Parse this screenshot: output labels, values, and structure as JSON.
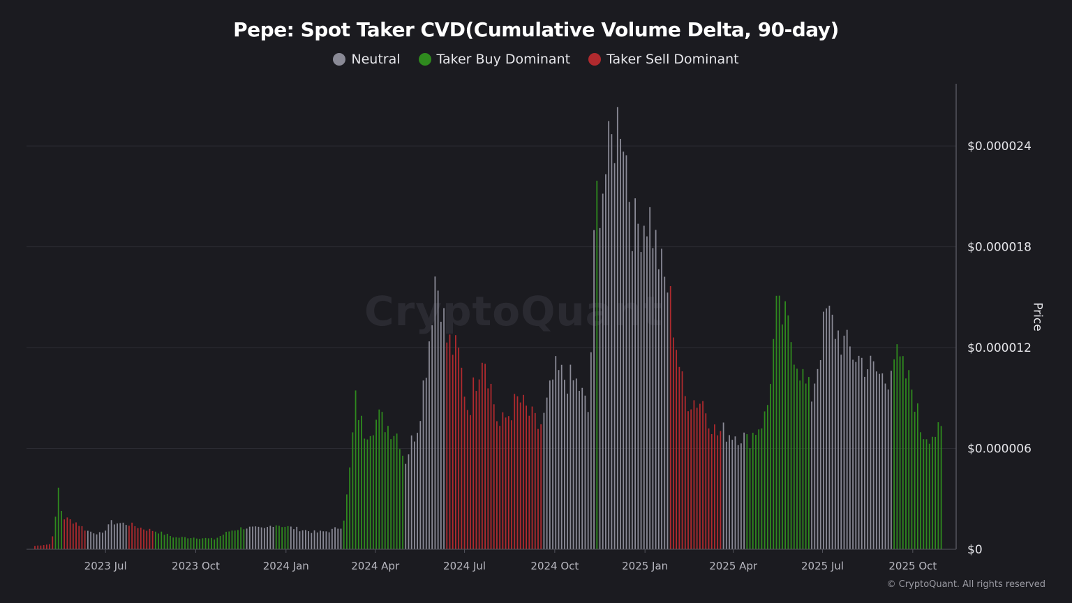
{
  "chart_data": {
    "type": "bar",
    "title": "Pepe: Spot Taker CVD(Cumulative Volume Delta, 90-day)",
    "ylabel": "Price",
    "ylim": [
      0,
      2.77e-05
    ],
    "yticks": [
      "$0",
      "$0.000006",
      "$0.000012",
      "$0.000018",
      "$0.000024"
    ],
    "ytick_values": [
      0,
      6e-06,
      1.2e-05,
      1.8e-05,
      2.4e-05
    ],
    "xticks": [
      "2023 Jul",
      "2023 Oct",
      "2024 Jan",
      "2024 Apr",
      "2024 Jul",
      "2024 Oct",
      "2025 Jan",
      "2025 Apr",
      "2025 Jul",
      "2025 Oct"
    ],
    "xtick_dates": [
      "2023-07-01",
      "2023-10-01",
      "2024-01-01",
      "2024-04-01",
      "2024-07-01",
      "2024-10-01",
      "2025-01-01",
      "2025-04-01",
      "2025-07-01",
      "2025-10-01"
    ],
    "x_range": [
      "2023-04-20",
      "2025-10-31"
    ],
    "legend_position": "top-center",
    "grid": true,
    "categories_legend": [
      {
        "name": "Neutral",
        "color": "#8a8a96"
      },
      {
        "name": "Taker Buy Dominant",
        "color": "#2f8a1e"
      },
      {
        "name": "Taker Sell Dominant",
        "color": "#b02a2e"
      }
    ],
    "series_points": [
      [
        "2023-04-20",
        2e-07,
        "sell"
      ],
      [
        "2023-05-05",
        3e-07,
        "sell"
      ],
      [
        "2023-05-10",
        1.2e-06,
        "buy"
      ],
      [
        "2023-05-14",
        3.6e-06,
        "buy"
      ],
      [
        "2023-05-18",
        1.9e-06,
        "sell"
      ],
      [
        "2023-06-01",
        1.6e-06,
        "sell"
      ],
      [
        "2023-06-12",
        1.1e-06,
        "neutral"
      ],
      [
        "2023-06-28",
        9e-07,
        "neutral"
      ],
      [
        "2023-07-05",
        1.6e-06,
        "neutral"
      ],
      [
        "2023-07-25",
        1.5e-06,
        "sell"
      ],
      [
        "2023-08-10",
        1.2e-06,
        "sell"
      ],
      [
        "2023-08-20",
        1.1e-06,
        "buy"
      ],
      [
        "2023-09-10",
        7e-07,
        "buy"
      ],
      [
        "2023-10-01",
        7e-07,
        "buy"
      ],
      [
        "2023-10-20",
        6e-07,
        "buy"
      ],
      [
        "2023-11-05",
        1.1e-06,
        "buy"
      ],
      [
        "2023-11-20",
        1.3e-06,
        "neutral"
      ],
      [
        "2023-12-10",
        1.2e-06,
        "neutral"
      ],
      [
        "2023-12-20",
        1.5e-06,
        "buy"
      ],
      [
        "2024-01-05",
        1.3e-06,
        "neutral"
      ],
      [
        "2024-02-01",
        1e-06,
        "neutral"
      ],
      [
        "2024-02-15",
        1.1e-06,
        "neutral"
      ],
      [
        "2024-02-28",
        1.4e-06,
        "buy"
      ],
      [
        "2024-03-05",
        4e-06,
        "buy"
      ],
      [
        "2024-03-12",
        8.8e-06,
        "buy"
      ],
      [
        "2024-03-20",
        7e-06,
        "buy"
      ],
      [
        "2024-04-05",
        7.8e-06,
        "buy"
      ],
      [
        "2024-04-25",
        6.8e-06,
        "buy"
      ],
      [
        "2024-05-01",
        5.2e-06,
        "neutral"
      ],
      [
        "2024-05-15",
        7.6e-06,
        "neutral"
      ],
      [
        "2024-05-25",
        1.2e-05,
        "neutral"
      ],
      [
        "2024-06-01",
        1.63e-05,
        "neutral"
      ],
      [
        "2024-06-08",
        1.48e-05,
        "neutral"
      ],
      [
        "2024-06-12",
        1.25e-05,
        "sell"
      ],
      [
        "2024-06-25",
        1.15e-05,
        "sell"
      ],
      [
        "2024-07-05",
        8.2e-06,
        "sell"
      ],
      [
        "2024-07-20",
        1.21e-05,
        "sell"
      ],
      [
        "2024-08-05",
        7.2e-06,
        "sell"
      ],
      [
        "2024-08-25",
        8.9e-06,
        "sell"
      ],
      [
        "2024-09-15",
        7.2e-06,
        "sell"
      ],
      [
        "2024-09-20",
        7.8e-06,
        "neutral"
      ],
      [
        "2024-10-01",
        1.05e-05,
        "neutral"
      ],
      [
        "2024-10-25",
        9.8e-06,
        "neutral"
      ],
      [
        "2024-11-05",
        8e-06,
        "neutral"
      ],
      [
        "2024-11-12",
        2.15e-05,
        "buy"
      ],
      [
        "2024-11-14",
        2.05e-05,
        "neutral"
      ],
      [
        "2024-12-08",
        2.64e-05,
        "neutral"
      ],
      [
        "2024-12-20",
        1.9e-05,
        "neutral"
      ],
      [
        "2025-01-05",
        2e-05,
        "neutral"
      ],
      [
        "2025-01-20",
        1.6e-05,
        "neutral"
      ],
      [
        "2025-01-25",
        1.55e-05,
        "sell"
      ],
      [
        "2025-02-10",
        9e-06,
        "sell"
      ],
      [
        "2025-03-01",
        8.8e-06,
        "sell"
      ],
      [
        "2025-03-15",
        6.8e-06,
        "sell"
      ],
      [
        "2025-03-20",
        7e-06,
        "neutral"
      ],
      [
        "2025-04-10",
        6.8e-06,
        "neutral"
      ],
      [
        "2025-04-15",
        6.4e-06,
        "buy"
      ],
      [
        "2025-05-05",
        8e-06,
        "buy"
      ],
      [
        "2025-05-15",
        1.4e-05,
        "buy"
      ],
      [
        "2025-05-25",
        1.35e-05,
        "buy"
      ],
      [
        "2025-06-15",
        9.5e-06,
        "buy"
      ],
      [
        "2025-06-20",
        9.2e-06,
        "neutral"
      ],
      [
        "2025-07-05",
        1.4e-05,
        "neutral"
      ],
      [
        "2025-07-25",
        1.2e-05,
        "neutral"
      ],
      [
        "2025-08-15",
        1.1e-05,
        "neutral"
      ],
      [
        "2025-09-05",
        1e-05,
        "neutral"
      ],
      [
        "2025-09-10",
        1.18e-05,
        "buy"
      ],
      [
        "2025-10-01",
        9.5e-06,
        "buy"
      ],
      [
        "2025-10-10",
        6.9e-06,
        "buy"
      ],
      [
        "2025-10-31",
        6.9e-06,
        "buy"
      ]
    ]
  },
  "watermark": "CryptoQuant",
  "copyright": "© CryptoQuant. All rights reserved"
}
